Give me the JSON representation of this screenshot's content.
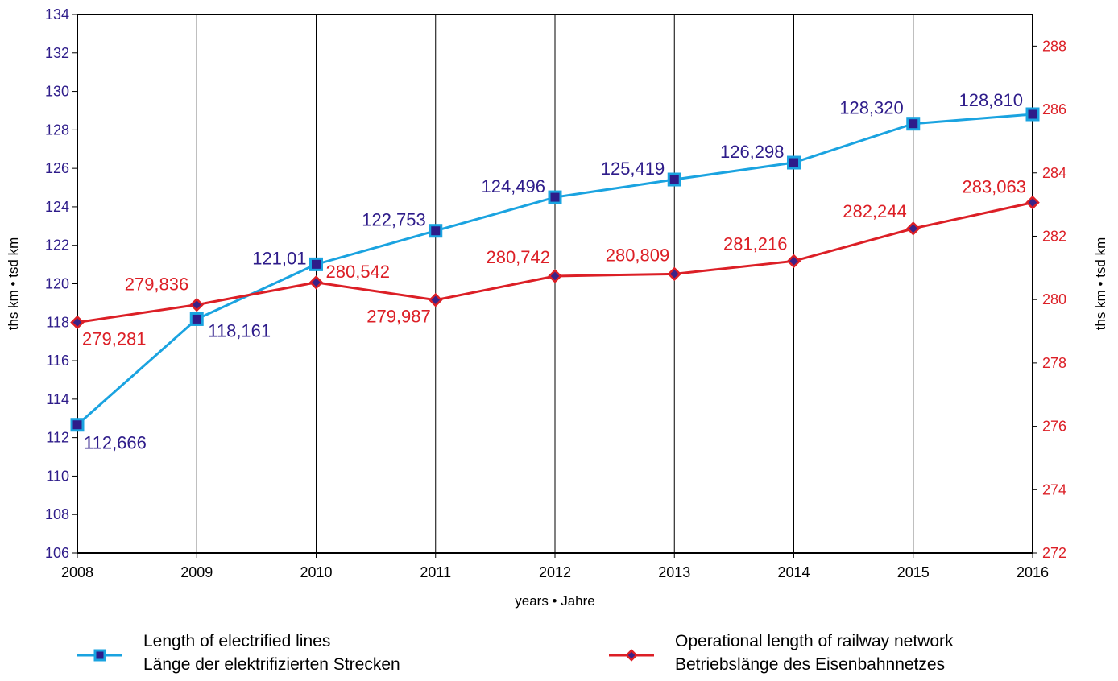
{
  "chart_data": {
    "type": "line",
    "x": [
      2008,
      2009,
      2010,
      2011,
      2012,
      2013,
      2014,
      2015,
      2016
    ],
    "xlabel": "years • Jahre",
    "ylabel_left": "ths km • tsd km",
    "ylabel_right": "ths km • tsd km",
    "ylim_left": [
      106,
      134
    ],
    "ylim_right": [
      272,
      289
    ],
    "yticks_left": [
      106,
      108,
      110,
      112,
      114,
      116,
      118,
      120,
      122,
      124,
      126,
      128,
      130,
      132,
      134
    ],
    "yticks_right": [
      272,
      274,
      276,
      278,
      280,
      282,
      284,
      286,
      288
    ],
    "grid": "vertical",
    "legend_position": "bottom",
    "series": [
      {
        "name": "Length of electrified lines",
        "name_de": "Länge der elektrifizierten Strecken",
        "axis": "left",
        "color": "#1aa3e0",
        "marker_color": "#2e1c8a",
        "values": [
          112.666,
          118.161,
          121.01,
          122.753,
          124.496,
          125.419,
          126.298,
          128.32,
          128.81
        ],
        "labels": [
          "112,666",
          "118,161",
          "121,01",
          "122,753",
          "124,496",
          "125,419",
          "126,298",
          "128,320",
          "128,810"
        ]
      },
      {
        "name": "Operational length of railway network",
        "name_de": "Betriebslänge des Eisenbahnnetzes",
        "axis": "right",
        "color": "#dc1f26",
        "marker_color": "#3a2488",
        "values": [
          279.281,
          279.836,
          280.542,
          279.987,
          280.742,
          280.809,
          281.216,
          282.244,
          283.063
        ],
        "labels": [
          "279,281",
          "279,836",
          "280,542",
          "279,987",
          "280,742",
          "280,809",
          "281,216",
          "282,244",
          "283,063"
        ]
      }
    ]
  }
}
